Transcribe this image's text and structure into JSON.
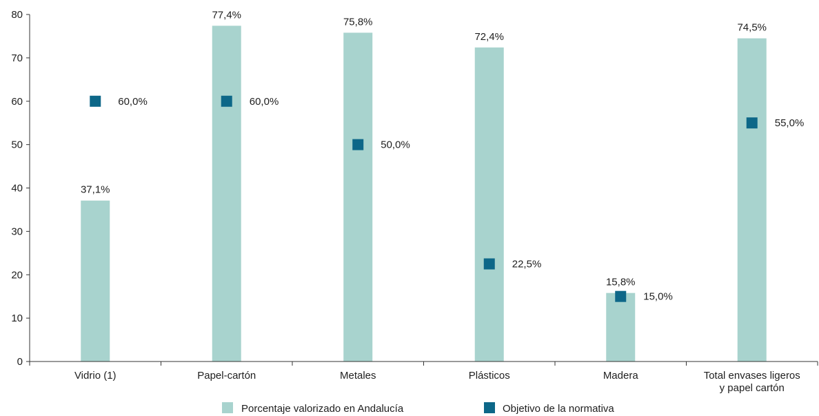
{
  "chart_data": {
    "type": "bar",
    "categories": [
      [
        "Vidrio (1)"
      ],
      [
        "Papel-cartón"
      ],
      [
        "Metales"
      ],
      [
        "Plásticos"
      ],
      [
        "Madera"
      ],
      [
        "Total envases ligeros",
        "y papel cartón"
      ]
    ],
    "series": [
      {
        "name": "Porcentaje valorizado en Andalucía",
        "kind": "bar",
        "color": "#a8d3ce",
        "values": [
          37.1,
          77.4,
          75.8,
          72.4,
          15.8,
          74.5
        ],
        "labels": [
          "37,1%",
          "77,4%",
          "75,8%",
          "72,4%",
          "15,8%",
          "74,5%"
        ]
      },
      {
        "name": "Objetivo de la normativa",
        "kind": "marker",
        "color": "#0d6788",
        "values": [
          60.0,
          60.0,
          50.0,
          22.5,
          15.0,
          55.0
        ],
        "labels": [
          "60,0%",
          "60,0%",
          "50,0%",
          "22,5%",
          "15,0%",
          "55,0%"
        ]
      }
    ],
    "ylim": [
      0,
      80
    ],
    "yticks": [
      0,
      10,
      20,
      30,
      40,
      50,
      60,
      70,
      80
    ],
    "legend_position": "bottom"
  }
}
